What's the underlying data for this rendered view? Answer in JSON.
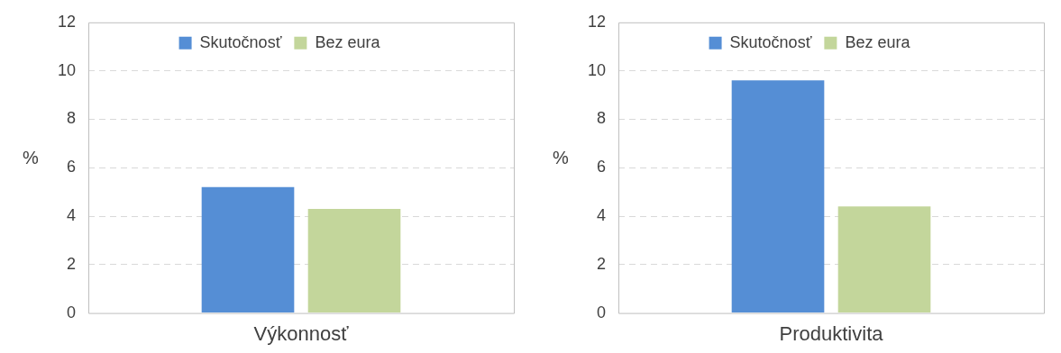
{
  "chart_data": [
    {
      "type": "bar",
      "categories": [
        "Výkonnosť"
      ],
      "series": [
        {
          "name": "Skutočnosť",
          "color": "#558ed5",
          "values": [
            5.2
          ]
        },
        {
          "name": "Bez eura",
          "color": "#c3d69b",
          "values": [
            4.3
          ]
        }
      ],
      "ylabel": "%",
      "ylim": [
        0,
        12
      ],
      "yticks": [
        0,
        2,
        4,
        6,
        8,
        10,
        12
      ],
      "grid": "y",
      "legend": "top"
    },
    {
      "type": "bar",
      "categories": [
        "Produktivita"
      ],
      "series": [
        {
          "name": "Skutočnosť",
          "color": "#558ed5",
          "values": [
            9.6
          ]
        },
        {
          "name": "Bez eura",
          "color": "#c3d69b",
          "values": [
            4.4
          ]
        }
      ],
      "ylabel": "%",
      "ylim": [
        0,
        12
      ],
      "yticks": [
        0,
        2,
        4,
        6,
        8,
        10,
        12
      ],
      "grid": "y",
      "legend": "top"
    }
  ]
}
